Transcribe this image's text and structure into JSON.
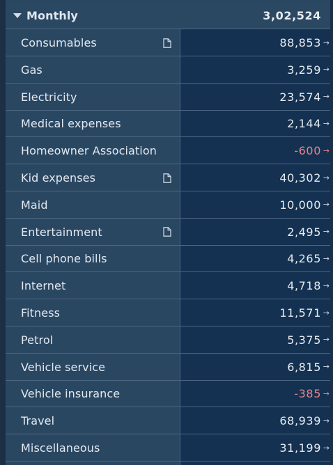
{
  "group": {
    "label": "Monthly",
    "total": "3,02,524"
  },
  "rows": [
    {
      "label": "Consumables",
      "value": "88,853",
      "negative": false,
      "has_note": true
    },
    {
      "label": "Gas",
      "value": "3,259",
      "negative": false,
      "has_note": false
    },
    {
      "label": "Electricity",
      "value": "23,574",
      "negative": false,
      "has_note": false
    },
    {
      "label": "Medical expenses",
      "value": "2,144",
      "negative": false,
      "has_note": false
    },
    {
      "label": "Homeowner Association",
      "value": "-600",
      "negative": true,
      "has_note": false
    },
    {
      "label": "Kid expenses",
      "value": "40,302",
      "negative": false,
      "has_note": true
    },
    {
      "label": "Maid",
      "value": "10,000",
      "negative": false,
      "has_note": false
    },
    {
      "label": "Entertainment",
      "value": "2,495",
      "negative": false,
      "has_note": true
    },
    {
      "label": "Cell phone bills",
      "value": "4,265",
      "negative": false,
      "has_note": false
    },
    {
      "label": "Internet",
      "value": "4,718",
      "negative": false,
      "has_note": false
    },
    {
      "label": "Fitness",
      "value": "11,571",
      "negative": false,
      "has_note": false
    },
    {
      "label": "Petrol",
      "value": "5,375",
      "negative": false,
      "has_note": false
    },
    {
      "label": "Vehicle service",
      "value": "6,815",
      "negative": false,
      "has_note": false
    },
    {
      "label": "Vehicle insurance",
      "value": "-385",
      "negative": true,
      "has_note": false
    },
    {
      "label": "Travel",
      "value": "68,939",
      "negative": false,
      "has_note": false
    },
    {
      "label": "Miscellaneous",
      "value": "31,199",
      "negative": false,
      "has_note": false
    }
  ],
  "colors": {
    "negative": "#e7848a",
    "label_bg": "#2a4762",
    "value_bg": "#143151"
  },
  "icons": {
    "expand": "caret-down-icon",
    "note": "document-icon",
    "navigate": "arrow-right-icon"
  }
}
